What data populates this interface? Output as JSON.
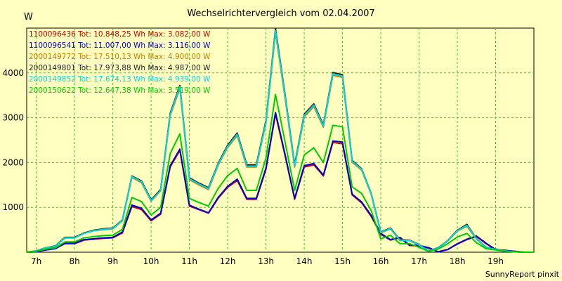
{
  "chart_data": {
    "type": "line",
    "title": "Wechselrichtervergleich vom 02.04.2007",
    "ylabel": "W",
    "credit": "SunnyReport pinxit",
    "ylim": [
      0,
      5000
    ],
    "yticks": [
      1000,
      2000,
      3000,
      4000
    ],
    "xlim": [
      6.75,
      20.0
    ],
    "xticks": [
      "7h",
      "8h",
      "9h",
      "10h",
      "11h",
      "12h",
      "13h",
      "14h",
      "15h",
      "16h",
      "17h",
      "18h",
      "19h"
    ],
    "grid": true,
    "legend_position": "top-left",
    "x": [
      6.75,
      7.0,
      7.25,
      7.5,
      7.75,
      8.0,
      8.25,
      8.5,
      8.75,
      9.0,
      9.25,
      9.5,
      9.75,
      10.0,
      10.25,
      10.5,
      10.75,
      11.0,
      11.25,
      11.5,
      11.75,
      12.0,
      12.25,
      12.5,
      12.75,
      13.0,
      13.25,
      13.5,
      13.75,
      14.0,
      14.25,
      14.5,
      14.75,
      15.0,
      15.25,
      15.5,
      15.75,
      16.0,
      16.25,
      16.5,
      16.75,
      17.0,
      17.25,
      17.5,
      17.75,
      18.0,
      18.25,
      18.5,
      18.75,
      19.0,
      19.25,
      19.5,
      19.75,
      20.0
    ],
    "series": [
      {
        "name": "1100096436 Tot: 10.848,25 Wh Max: 3.082,00 W",
        "color": "#cc0000",
        "values": [
          0,
          10,
          50,
          80,
          190,
          190,
          270,
          290,
          310,
          320,
          430,
          1020,
          950,
          700,
          850,
          1900,
          2270,
          1030,
          950,
          870,
          1200,
          1450,
          1600,
          1180,
          1180,
          1850,
          3082,
          2150,
          1180,
          1900,
          1950,
          1700,
          2450,
          2420,
          1280,
          1100,
          800,
          400,
          270,
          320,
          150,
          140,
          90,
          10,
          60,
          180,
          280,
          350,
          190,
          60,
          40,
          20,
          0,
          0
        ]
      },
      {
        "name": "1100096541 Tot: 11.007,00 Wh Max: 3.116,00 W",
        "color": "#0000cc",
        "values": [
          0,
          10,
          50,
          80,
          200,
          200,
          280,
          300,
          320,
          330,
          450,
          1050,
          980,
          720,
          870,
          1930,
          2300,
          1050,
          960,
          880,
          1220,
          1470,
          1630,
          1200,
          1200,
          1880,
          3116,
          2180,
          1200,
          1930,
          1980,
          1720,
          2480,
          2460,
          1300,
          1120,
          820,
          420,
          280,
          330,
          160,
          150,
          100,
          10,
          60,
          190,
          290,
          360,
          200,
          60,
          40,
          20,
          0,
          0
        ]
      },
      {
        "name": "2000149772 Tot: 17.510,13 Wh Max: 4.900,00 W",
        "color": "#cc7700",
        "values": [
          0,
          30,
          100,
          130,
          320,
          320,
          420,
          480,
          500,
          520,
          700,
          1670,
          1550,
          1140,
          1370,
          3050,
          3650,
          1620,
          1500,
          1400,
          1940,
          2340,
          2600,
          1900,
          1900,
          2880,
          4900,
          3440,
          1900,
          3020,
          3250,
          2790,
          3950,
          3900,
          2010,
          1830,
          1290,
          430,
          520,
          260,
          260,
          160,
          30,
          90,
          250,
          470,
          580,
          290,
          100,
          60,
          30,
          10,
          0,
          0
        ]
      },
      {
        "name": "2000149801 Tot: 17.973,88 Wh Max: 4.987,00 W",
        "color": "#222222",
        "values": [
          0,
          30,
          100,
          140,
          330,
          330,
          430,
          490,
          520,
          540,
          720,
          1700,
          1590,
          1170,
          1400,
          3100,
          3720,
          1660,
          1540,
          1440,
          1980,
          2390,
          2660,
          1950,
          1950,
          2940,
          4987,
          3510,
          1950,
          3080,
          3310,
          2840,
          4010,
          3960,
          2050,
          1860,
          1310,
          450,
          540,
          280,
          270,
          170,
          30,
          100,
          260,
          490,
          620,
          300,
          110,
          70,
          30,
          10,
          0,
          0
        ]
      },
      {
        "name": "2000149852 Tot: 17.674,13 Wh Max: 4.939,00 W",
        "color": "#00d8e0",
        "values": [
          0,
          30,
          100,
          130,
          320,
          320,
          420,
          480,
          510,
          530,
          710,
          1690,
          1570,
          1150,
          1380,
          3070,
          3690,
          1640,
          1520,
          1420,
          1960,
          2360,
          2630,
          1920,
          1920,
          2900,
          4939,
          3470,
          1920,
          3050,
          3280,
          2810,
          3980,
          3930,
          2030,
          1850,
          1300,
          440,
          530,
          270,
          265,
          165,
          30,
          95,
          255,
          480,
          600,
          295,
          105,
          65,
          30,
          10,
          0,
          0
        ]
      },
      {
        "name": "2000150622 Tot: 12.647,38 Wh Max: 3.519,00 W",
        "color": "#00cc00",
        "values": [
          0,
          20,
          70,
          100,
          230,
          230,
          320,
          350,
          370,
          380,
          510,
          1220,
          1130,
          830,
          1000,
          2200,
          2640,
          1200,
          1110,
          1030,
          1420,
          1710,
          1870,
          1380,
          1380,
          2100,
          3519,
          2460,
          1380,
          2170,
          2330,
          2000,
          2830,
          2800,
          1460,
          1310,
          930,
          300,
          380,
          190,
          190,
          110,
          20,
          70,
          190,
          340,
          420,
          210,
          80,
          50,
          20,
          10,
          0,
          0
        ]
      }
    ]
  }
}
